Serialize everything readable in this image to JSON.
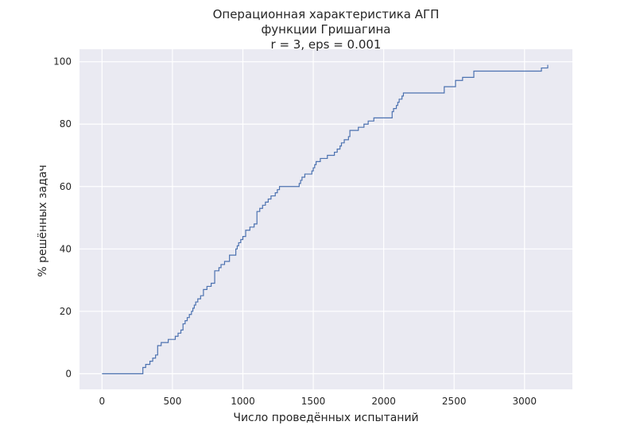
{
  "chart_data": {
    "type": "line",
    "title_lines": [
      "Операционная характеристика АГП",
      "функции Гришагина",
      "r = 3, eps = 0.001"
    ],
    "xlabel": "Число проведённых испытаний",
    "ylabel": "% решённых задач",
    "xlim": [
      -160,
      3340
    ],
    "ylim": [
      -5,
      104
    ],
    "xticks": [
      0,
      500,
      1000,
      1500,
      2000,
      2500,
      3000
    ],
    "yticks": [
      0,
      20,
      40,
      60,
      80,
      100
    ],
    "grid": true,
    "step": true,
    "colors": {
      "line": "#4c72b0",
      "plot_background": "#eaeaf2",
      "grid": "#ffffff"
    },
    "series": [
      {
        "values": {
          "x": [
            0,
            290,
            310,
            340,
            360,
            380,
            395,
            420,
            470,
            520,
            540,
            560,
            575,
            590,
            605,
            620,
            635,
            645,
            655,
            665,
            680,
            700,
            720,
            745,
            775,
            800,
            830,
            845,
            870,
            905,
            950,
            960,
            970,
            985,
            1000,
            1020,
            1050,
            1080,
            1100,
            1120,
            1140,
            1160,
            1180,
            1200,
            1230,
            1245,
            1260,
            1400,
            1410,
            1420,
            1440,
            1490,
            1500,
            1510,
            1520,
            1550,
            1600,
            1650,
            1670,
            1690,
            1700,
            1720,
            1750,
            1760,
            1820,
            1860,
            1890,
            1930,
            2060,
            2070,
            2090,
            2100,
            2110,
            2130,
            2140,
            2430,
            2510,
            2560,
            2640,
            3120,
            3165
          ],
          "y": [
            0,
            2,
            3,
            4,
            5,
            6,
            9,
            10,
            11,
            12,
            13,
            14,
            16,
            17,
            18,
            19,
            20,
            21,
            22,
            23,
            24,
            25,
            27,
            28,
            29,
            33,
            34,
            35,
            36,
            38,
            40,
            41,
            42,
            43,
            44,
            46,
            47,
            48,
            52,
            53,
            54,
            55,
            56,
            57,
            58,
            59,
            60,
            61,
            62,
            63,
            64,
            65,
            66,
            67,
            68,
            69,
            70,
            71,
            72,
            73,
            74,
            75,
            76,
            78,
            79,
            80,
            81,
            82,
            84,
            85,
            86,
            87,
            88,
            89,
            90,
            92,
            94,
            95,
            97,
            98,
            99
          ]
        }
      }
    ]
  }
}
